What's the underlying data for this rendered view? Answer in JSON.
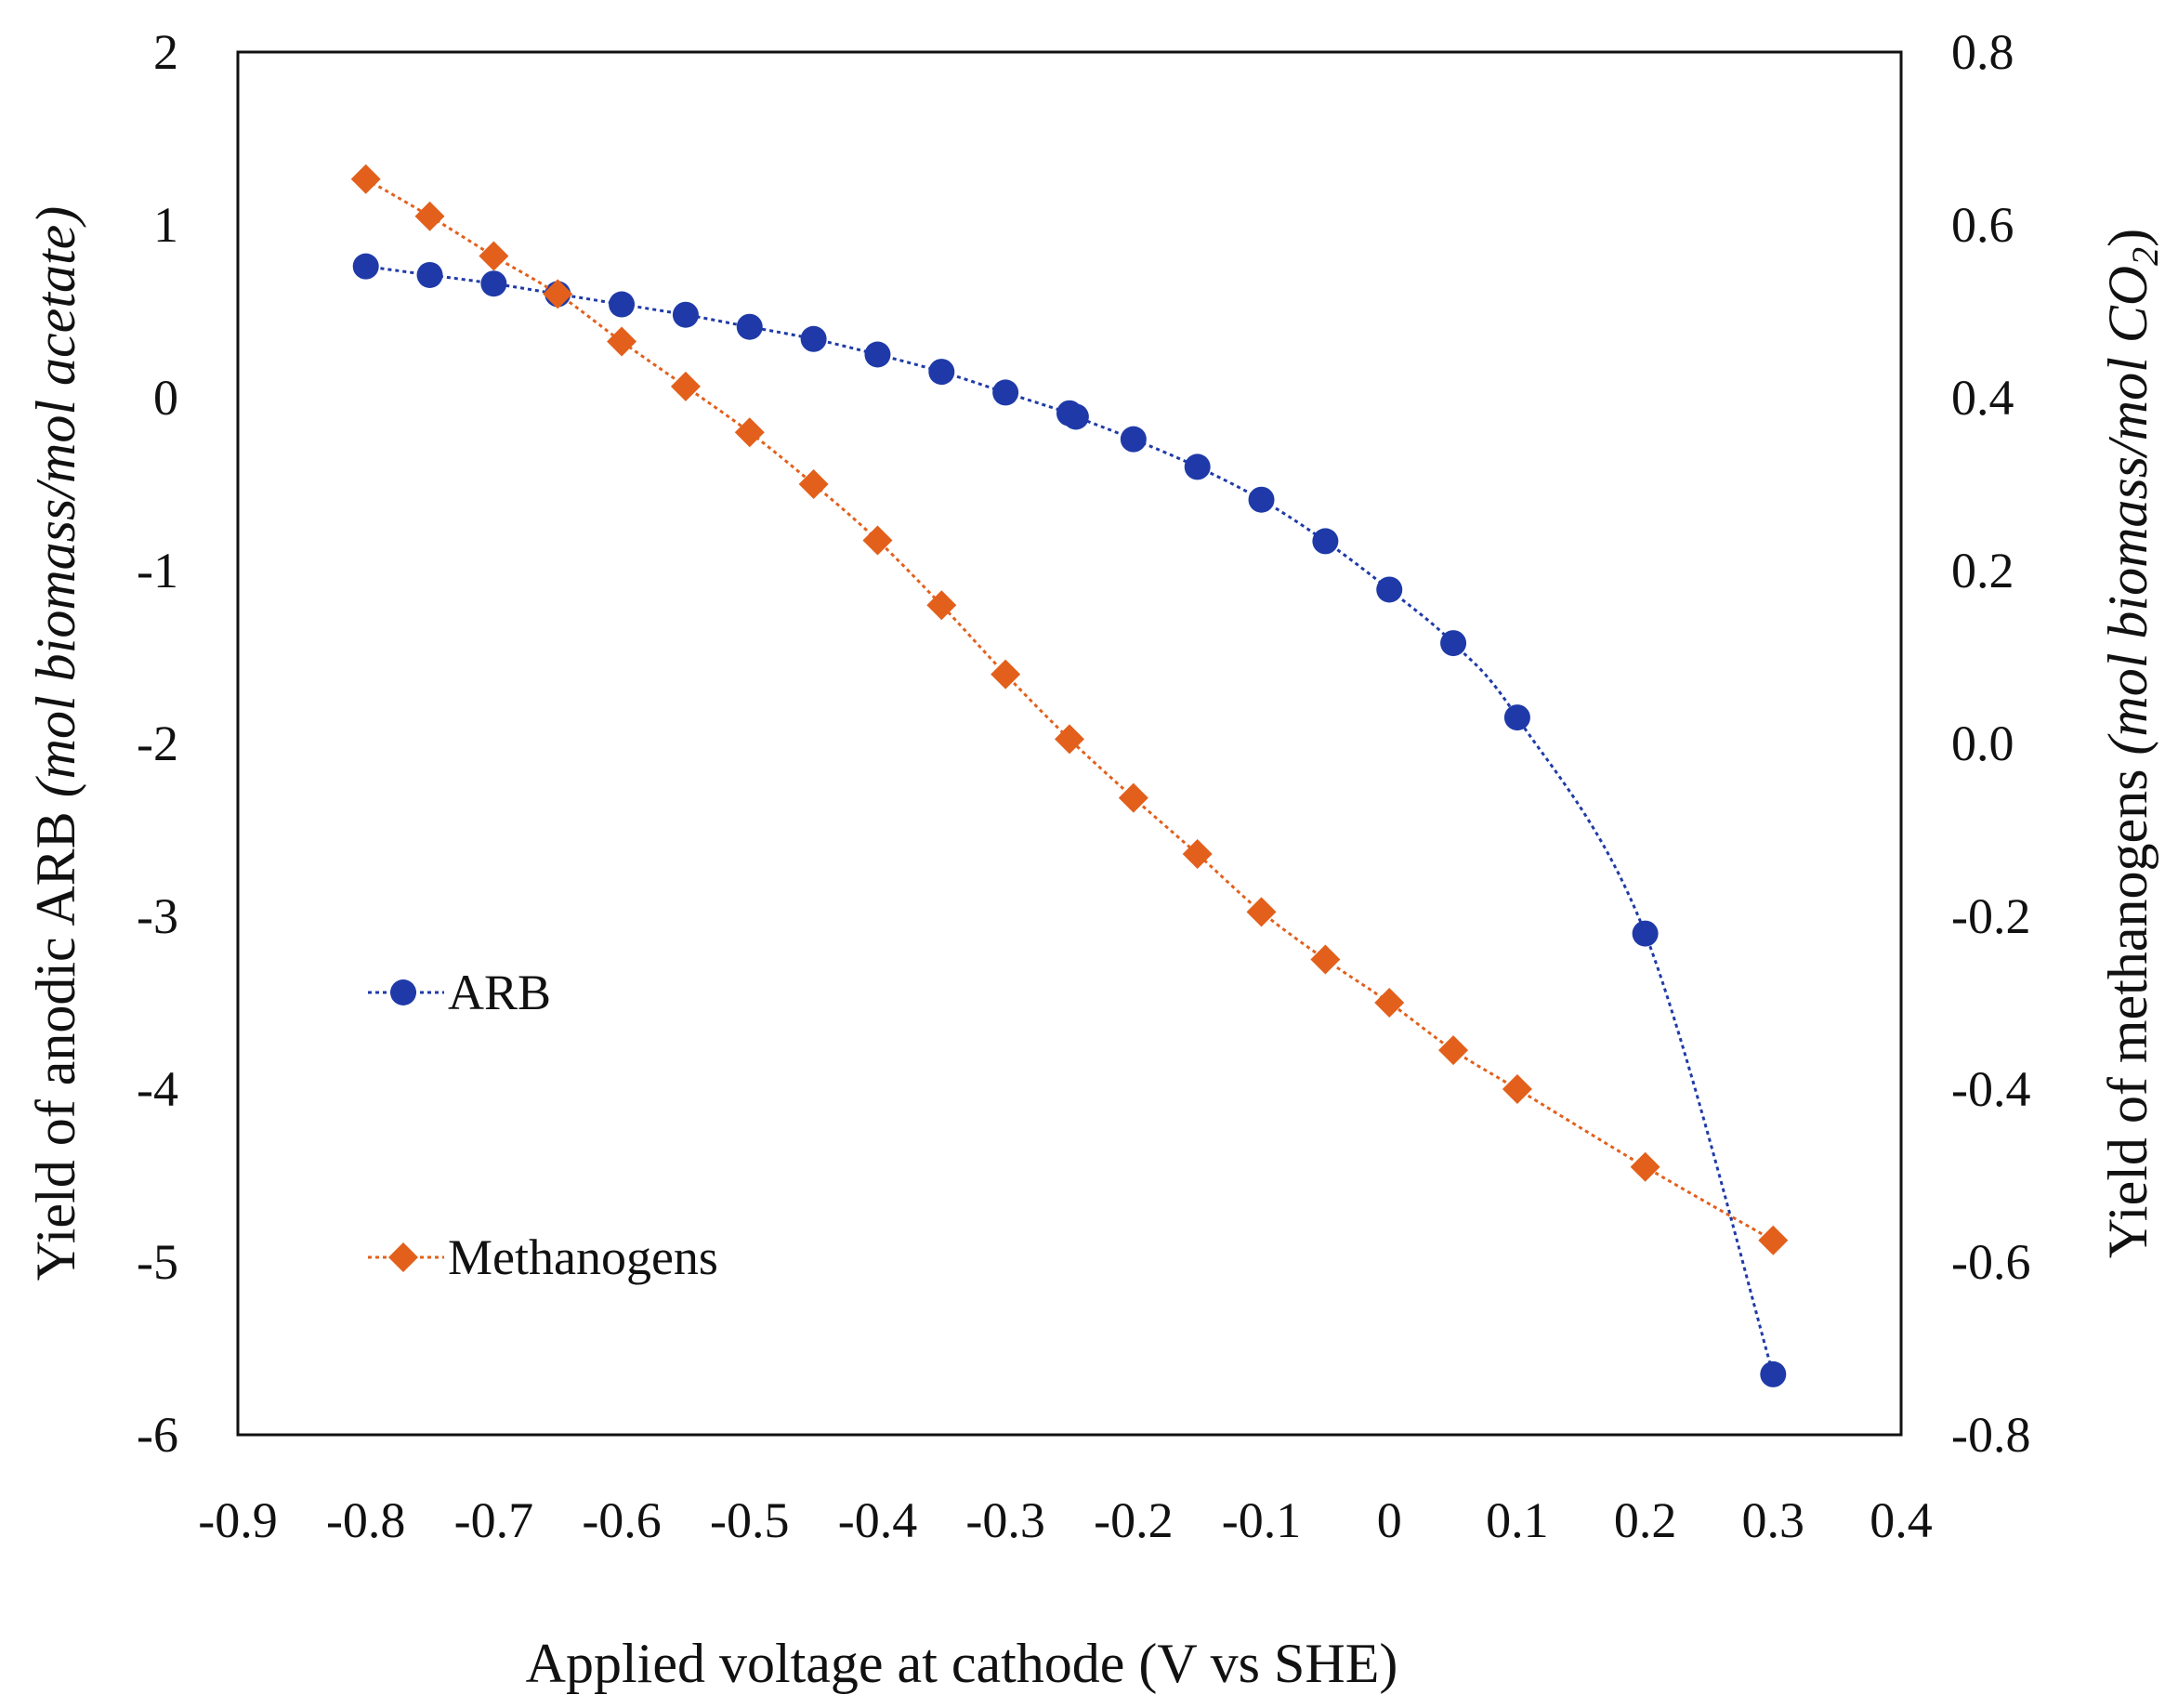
{
  "chart_data": {
    "type": "line",
    "title": "",
    "xlabel": "Applied  voltage at cathode (V vs SHE)",
    "ylabel_left": {
      "plain": "Yield of anodic ARB ",
      "italic": "(mol biomass/mol acetate)"
    },
    "ylabel_right": {
      "plain": "Yield of methanogens ",
      "italic_main": "(mol biomass/mol CO",
      "subscript": "2",
      "close": ")"
    },
    "xlim": [
      -0.9,
      0.4
    ],
    "ylim_left": [
      -6,
      2
    ],
    "ylim_right": [
      -0.8,
      0.8
    ],
    "x_ticks": [
      "-0.9",
      "-0.8",
      "-0.7",
      "-0.6",
      "-0.5",
      "-0.4",
      "-0.3",
      "-0.2",
      "-0.1",
      "0",
      "0.1",
      "0.2",
      "0.3",
      "0.4"
    ],
    "y_left_ticks": [
      "2",
      "1",
      "0",
      "-1",
      "-2",
      "-3",
      "-4",
      "-5",
      "-6"
    ],
    "y_right_ticks": [
      "0.8",
      "0.6",
      "0.4",
      "0.2",
      "0.0",
      "-0.2",
      "-0.4",
      "-0.6",
      "-0.8"
    ],
    "series": [
      {
        "name": "ARB",
        "axis": "left",
        "marker": "circle",
        "color": "#1f3aa8",
        "x": [
          -0.8,
          -0.75,
          -0.7,
          -0.65,
          -0.6,
          -0.55,
          -0.5,
          -0.45,
          -0.4,
          -0.35,
          -0.3,
          -0.25,
          -0.245,
          -0.2,
          -0.15,
          -0.1,
          -0.05,
          0.0,
          0.05,
          0.1,
          0.2,
          0.3
        ],
        "y": [
          0.76,
          0.71,
          0.66,
          0.6,
          0.54,
          0.48,
          0.41,
          0.34,
          0.25,
          0.15,
          0.03,
          -0.09,
          -0.11,
          -0.24,
          -0.4,
          -0.59,
          -0.83,
          -1.11,
          -1.42,
          -1.85,
          -3.1,
          -5.65
        ]
      },
      {
        "name": "Methanogens",
        "axis": "right",
        "marker": "diamond",
        "color": "#e2601c",
        "x": [
          -0.8,
          -0.75,
          -0.7,
          -0.65,
          -0.6,
          -0.55,
          -0.5,
          -0.45,
          -0.4,
          -0.35,
          -0.3,
          -0.25,
          -0.2,
          -0.15,
          -0.1,
          -0.05,
          0.0,
          0.05,
          0.1,
          0.2,
          0.3
        ],
        "y": [
          0.653,
          0.61,
          0.564,
          0.52,
          0.465,
          0.413,
          0.36,
          0.3,
          0.235,
          0.16,
          0.08,
          0.005,
          -0.063,
          -0.128,
          -0.195,
          -0.25,
          -0.3,
          -0.355,
          -0.4,
          -0.49,
          -0.575
        ]
      }
    ],
    "legend": [
      {
        "label": "ARB"
      },
      {
        "label": "Methanogens"
      }
    ],
    "legend_position": "left-middle",
    "grid": false
  }
}
